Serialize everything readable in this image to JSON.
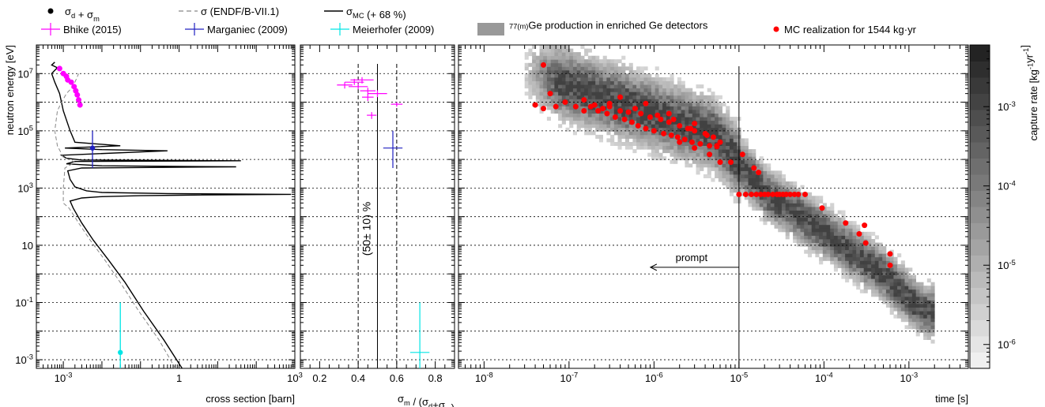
{
  "legend": {
    "items": [
      {
        "label": "σ_d + σ_m",
        "type": "marker",
        "color": "#000000"
      },
      {
        "label": "σ (ENDF/B-VII.1)",
        "type": "dashed",
        "color": "#888888"
      },
      {
        "label": "σ_MC (+ 68 %)",
        "type": "line",
        "color": "#000000"
      },
      {
        "label": "Bhike (2015)",
        "type": "errcross",
        "color": "#ff00ff"
      },
      {
        "label": "Marganiec (2009)",
        "type": "errcross",
        "color": "#2020c0"
      },
      {
        "label": "Meierhofer (2009)",
        "type": "errcross",
        "color": "#00e5e5"
      },
      {
        "label": "⁷⁷⁽ᵐ⁾Ge production in enriched Ge detectors",
        "type": "box",
        "color": "#999999"
      },
      {
        "label": "MC realization for 1544 kg·yr",
        "type": "marker",
        "color": "#ff0000"
      }
    ]
  },
  "chart_data": [
    {
      "type": "line",
      "panel": "cross section",
      "xlabel": "cross section [barn]",
      "ylabel": "neutron energy [eV]",
      "xscale": "log",
      "yscale": "log",
      "xlim": [
        0.0002,
        1000
      ],
      "ylim": [
        0.0005,
        100000000
      ],
      "xticks": [
        "10⁻³",
        "1",
        "10³"
      ],
      "yticks": [
        "10⁻³",
        "10⁻¹",
        "10",
        "10³",
        "10⁵",
        "10⁷"
      ],
      "grid_y": true,
      "series": [
        {
          "name": "σ_d + σ_m",
          "kind": "markers",
          "color": "#ff00ff",
          "x": [
            0.0008,
            0.001,
            0.0012,
            0.0013,
            0.0016,
            0.0019,
            0.0021,
            0.0023,
            0.0025,
            0.0027
          ],
          "y": [
            15000000,
            10000000,
            8000000,
            6000000,
            5000000,
            3500000,
            2500000,
            1800000,
            1200000,
            800000
          ]
        },
        {
          "name": "Meierhofer (2009)",
          "kind": "errorbar",
          "color": "#00e5e5",
          "x": [
            0.03
          ],
          "y": [
            0.0018
          ],
          "ylow": [
            0.0005
          ],
          "yhigh": [
            0.1
          ]
        },
        {
          "name": "Marganiec (2009)",
          "kind": "errorbar",
          "color": "#2020c0",
          "x": [
            0.0057
          ],
          "y": [
            25000
          ],
          "ylow": [
            5000
          ],
          "yhigh": [
            100000
          ]
        },
        {
          "name": "σ_MC (+ 68 %)",
          "kind": "line",
          "color": "#000000",
          "x": [
            1.2,
            0.4,
            0.12,
            0.04,
            0.015,
            0.006,
            0.003,
            0.0018,
            0.0015,
            0.003,
            0.01,
            0.1,
            1,
            10,
            800,
            0.5,
            0.01,
            0.004,
            0.002,
            0.0015,
            0.0013,
            0.003,
            30,
            0.01,
            0.0012,
            0.002,
            40,
            0.003,
            0.0012,
            0.0009,
            0.5,
            0.01,
            0.0011,
            0.03,
            0.002,
            0.0015,
            0.001,
            0.0008,
            0.0006,
            0.0005,
            0.0006,
            0.0007,
            0.0005,
            0.0006
          ],
          "y": [
            0.0005,
            0.005,
            0.05,
            0.5,
            3,
            15,
            60,
            200,
            350,
            450,
            500,
            540,
            560,
            580,
            600,
            640,
            700,
            800,
            1100,
            2000,
            4000,
            5000,
            5500,
            6000,
            7000,
            8500,
            9000,
            9500,
            11000,
            14000,
            20000,
            22000,
            25000,
            30000,
            40000,
            100000,
            500000,
            2000000,
            5000000,
            10000000,
            13000000,
            16000000,
            20000000,
            25000000
          ]
        },
        {
          "name": "σ (ENDF/B-VII.1)",
          "kind": "dashed",
          "color": "#888888",
          "x": [
            0.8,
            0.3,
            0.09,
            0.03,
            0.012,
            0.005,
            0.0025,
            0.0014,
            0.001,
            0.001,
            0.0011,
            0.002,
            0.001,
            0.0007,
            0.0006,
            0.0007,
            0.0009,
            0.0012,
            0.0016,
            0.002,
            0.0025
          ],
          "y": [
            0.0005,
            0.005,
            0.05,
            0.5,
            3,
            15,
            60,
            200,
            300,
            1000,
            5000,
            8000,
            12000,
            30000,
            100000,
            500000,
            1000000,
            2000000,
            3000000,
            5000000,
            10000000
          ]
        }
      ]
    },
    {
      "type": "scatter",
      "panel": "ratio",
      "xlabel": "σ_m / (σ_d+σ_m)",
      "xlim": [
        0.1,
        0.9
      ],
      "xticks": [
        "0.2",
        "0.4",
        "0.6",
        "0.8"
      ],
      "yscale": "log",
      "ylim": [
        0.0005,
        100000000
      ],
      "grid_y": true,
      "band_label": "(50± 10) %",
      "band": [
        0.4,
        0.5,
        0.6
      ],
      "series": [
        {
          "name": "Bhike (2015)",
          "color": "#ff00ff",
          "x": [
            0.33,
            0.38,
            0.42,
            0.4,
            0.45,
            0.5,
            0.45,
            0.47,
            0.6
          ],
          "xerr": [
            0.04,
            0.05,
            0.06,
            0.05,
            0.04,
            0.05,
            0.03,
            0.025,
            0.03
          ],
          "y": [
            4000000,
            5000000,
            6000000,
            3500000,
            2500000,
            2000000,
            1500000,
            350000,
            850000
          ],
          "ylow": [
            3000000,
            4000000,
            4500000,
            2800000,
            1800000,
            1500000,
            1100000,
            260000,
            700000
          ],
          "yhigh": [
            5000000,
            6500000,
            7500000,
            4500000,
            3200000,
            2600000,
            1900000,
            450000,
            1000000
          ]
        },
        {
          "name": "Marganiec (2009)",
          "color": "#2020c0",
          "x": [
            0.58
          ],
          "xerr": [
            0.05
          ],
          "y": [
            25000
          ],
          "ylow": [
            5000
          ],
          "yhigh": [
            100000
          ]
        },
        {
          "name": "Meierhofer (2009)",
          "color": "#00e5e5",
          "x": [
            0.72
          ],
          "xerr": [
            0.05
          ],
          "y": [
            0.0018
          ],
          "ylow": [
            0.0005
          ],
          "yhigh": [
            0.1
          ]
        }
      ]
    },
    {
      "type": "heatmap",
      "panel": "time",
      "xlabel": "time [s]",
      "xscale": "log",
      "yscale": "log",
      "xlim": [
        5e-09,
        0.005
      ],
      "ylim": [
        0.0005,
        100000000
      ],
      "xticks": [
        "10⁻⁸",
        "10⁻⁷",
        "10⁻⁶",
        "10⁻⁵",
        "10⁻⁴",
        "10⁻³"
      ],
      "grid_y": true,
      "cut_time": 1e-05,
      "annotation": "prompt",
      "colorbar": {
        "label": "capture rate [kg⁻¹yr⁻¹]",
        "scale": "log",
        "range": [
          5e-07,
          0.006
        ],
        "ticks": [
          "10⁻⁶",
          "10⁻⁵",
          "10⁻⁴",
          "10⁻³"
        ]
      },
      "band_path": [
        {
          "t": 4e-08,
          "e": 10000000
        },
        {
          "t": 2e-07,
          "e": 2000000
        },
        {
          "t": 1e-06,
          "e": 400000
        },
        {
          "t": 5e-06,
          "e": 80000
        },
        {
          "t": 1e-05,
          "e": 8000
        },
        {
          "t": 2e-05,
          "e": 700
        },
        {
          "t": 0.0001,
          "e": 30
        },
        {
          "t": 0.0005,
          "e": 1
        },
        {
          "t": 0.0015,
          "e": 0.05
        }
      ],
      "series": [
        {
          "name": "MC realization for 1544 kg·yr",
          "color": "#ff0000",
          "x": [
            5e-08,
            6e-08,
            4e-08,
            5e-08,
            7e-08,
            9e-08,
            1.2e-07,
            1.5e-07,
            2e-07,
            2.5e-07,
            3e-07,
            4e-07,
            5e-07,
            7e-07,
            9e-07,
            1.2e-06,
            1.5e-06,
            2e-06,
            2.5e-06,
            3e-06,
            4e-06,
            5e-06,
            6e-06,
            1.8e-07,
            2.2e-07,
            2.8e-07,
            3.5e-07,
            4.5e-07,
            5.5e-07,
            6.5e-07,
            8e-07,
            1e-06,
            1.3e-06,
            1.6e-06,
            1.9e-06,
            2.3e-06,
            2.8e-06,
            3.5e-06,
            4.5e-06,
            5.5e-06,
            1.5e-07,
            3e-07,
            6e-07,
            1.1e-06,
            1.7e-06,
            2.7e-06,
            4.2e-06,
            5.5e-06,
            2e-06,
            3e-06,
            4.5e-06,
            6e-06,
            1.1e-05,
            8e-06,
            1.5e-05,
            1.7e-05,
            1e-05,
            1.2e-05,
            1.4e-05,
            1.6e-05,
            1.8e-05,
            2e-05,
            2.2e-05,
            2.5e-05,
            2.8e-05,
            3e-05,
            3.3e-05,
            3.6e-05,
            4e-05,
            4.5e-05,
            5e-05,
            6e-05,
            9.5e-05,
            0.00018,
            0.00026,
            0.0003,
            0.00031,
            0.0006,
            0.0006,
            4e-07,
            8e-07,
            1.5e-06,
            3e-06
          ],
          "y": [
            20000000,
            2000000,
            800000,
            600000,
            700000,
            1000000,
            700000,
            500000,
            800000,
            600000,
            700000,
            500000,
            450000,
            400000,
            300000,
            250000,
            200000,
            150000,
            120000,
            100000,
            80000,
            60000,
            40000,
            700000,
            500000,
            400000,
            300000,
            250000,
            200000,
            150000,
            120000,
            100000,
            80000,
            70000,
            60000,
            50000,
            40000,
            35000,
            30000,
            28000,
            1200000,
            900000,
            600000,
            350000,
            250000,
            120000,
            70000,
            30000,
            40000,
            25000,
            15000,
            8000,
            15000,
            8000,
            5000,
            3500,
            600,
            600,
            600,
            600,
            600,
            600,
            600,
            600,
            600,
            600,
            600,
            600,
            600,
            600,
            600,
            600,
            200,
            60,
            25,
            50,
            12,
            5,
            2,
            1500000,
            900000,
            400000,
            180000
          ]
        }
      ]
    }
  ]
}
